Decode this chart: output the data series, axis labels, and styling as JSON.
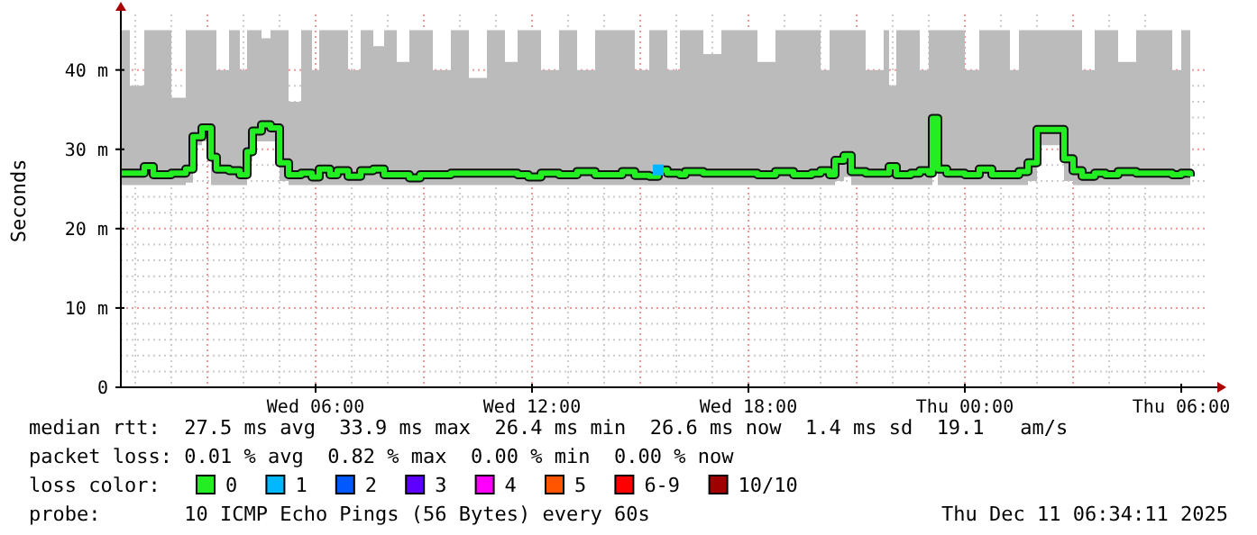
{
  "chart_data": {
    "type": "step",
    "ylabel": "Seconds",
    "legend_title": "loss color:",
    "legend": "bottom",
    "grid": true,
    "line_style": "solid",
    "xlim": [
      "2025-12-10T00:36",
      "2025-12-11T06:42"
    ],
    "xticks": [
      {
        "value": "2025-12-10T06:00",
        "label": "Wed 06:00"
      },
      {
        "value": "2025-12-10T12:00",
        "label": "Wed 12:00"
      },
      {
        "value": "2025-12-10T18:00",
        "label": "Wed 18:00"
      },
      {
        "value": "2025-12-11T00:00",
        "label": "Thu 00:00"
      },
      {
        "value": "2025-12-11T06:00",
        "label": "Thu 06:00"
      }
    ],
    "ylim": [
      0,
      47
    ],
    "yticks": [
      0,
      {
        "value": 10,
        "label": "10 m"
      },
      {
        "value": 20,
        "label": "20 m"
      },
      {
        "value": 30,
        "label": "30 m"
      },
      {
        "value": 40,
        "label": "40 m"
      }
    ],
    "x": [
      "2025-12-10T00:36",
      "2025-12-10T00:51",
      "2025-12-10T01:15",
      "2025-12-10T01:30",
      "2025-12-10T02:00",
      "2025-12-10T02:24",
      "2025-12-10T02:36",
      "2025-12-10T02:51",
      "2025-12-10T03:06",
      "2025-12-10T03:15",
      "2025-12-10T03:36",
      "2025-12-10T03:54",
      "2025-12-10T04:06",
      "2025-12-10T04:15",
      "2025-12-10T04:30",
      "2025-12-10T04:45",
      "2025-12-10T05:00",
      "2025-12-10T05:15",
      "2025-12-10T05:36",
      "2025-12-10T05:54",
      "2025-12-10T06:06",
      "2025-12-10T06:24",
      "2025-12-10T06:36",
      "2025-12-10T06:54",
      "2025-12-10T07:15",
      "2025-12-10T07:36",
      "2025-12-10T07:54",
      "2025-12-10T08:15",
      "2025-12-10T08:36",
      "2025-12-10T08:54",
      "2025-12-10T09:15",
      "2025-12-10T09:45",
      "2025-12-10T10:15",
      "2025-12-10T10:45",
      "2025-12-10T11:15",
      "2025-12-10T11:36",
      "2025-12-10T11:54",
      "2025-12-10T12:15",
      "2025-12-10T12:45",
      "2025-12-10T13:15",
      "2025-12-10T13:45",
      "2025-12-10T14:15",
      "2025-12-10T14:30",
      "2025-12-10T14:51",
      "2025-12-10T15:15",
      "2025-12-10T15:30",
      "2025-12-10T15:45",
      "2025-12-10T16:06",
      "2025-12-10T16:15",
      "2025-12-10T16:45",
      "2025-12-10T17:15",
      "2025-12-10T17:45",
      "2025-12-10T18:15",
      "2025-12-10T18:45",
      "2025-12-10T19:15",
      "2025-12-10T19:45",
      "2025-12-10T20:00",
      "2025-12-10T20:15",
      "2025-12-10T20:24",
      "2025-12-10T20:39",
      "2025-12-10T20:51",
      "2025-12-10T21:15",
      "2025-12-10T21:45",
      "2025-12-10T21:54",
      "2025-12-10T22:06",
      "2025-12-10T22:30",
      "2025-12-10T22:45",
      "2025-12-10T23:00",
      "2025-12-10T23:06",
      "2025-12-10T23:15",
      "2025-12-10T23:30",
      "2025-12-11T00:00",
      "2025-12-11T00:24",
      "2025-12-11T00:45",
      "2025-12-11T01:15",
      "2025-12-11T01:30",
      "2025-12-11T01:45",
      "2025-12-11T02:00",
      "2025-12-11T02:30",
      "2025-12-11T02:45",
      "2025-12-11T03:00",
      "2025-12-11T03:15",
      "2025-12-11T03:36",
      "2025-12-11T03:54",
      "2025-12-11T04:15",
      "2025-12-11T04:45",
      "2025-12-11T05:15",
      "2025-12-11T05:45",
      "2025-12-11T06:00",
      "2025-12-11T06:15"
    ],
    "series": [
      {
        "name": "0",
        "color": "#22ee22",
        "values": [
          27.0,
          27.0,
          27.8,
          26.8,
          27.0,
          27.5,
          31.6,
          32.7,
          29.0,
          27.5,
          27.3,
          26.8,
          29.7,
          32.3,
          33.1,
          32.7,
          28.3,
          26.8,
          27.0,
          26.5,
          27.5,
          26.8,
          27.3,
          26.6,
          27.3,
          27.5,
          26.8,
          26.8,
          26.4,
          26.8,
          26.8,
          27.0,
          27.0,
          27.0,
          27.0,
          26.8,
          26.5,
          27.0,
          26.8,
          27.2,
          26.8,
          26.8,
          27.2,
          26.7,
          26.6,
          27.4,
          27.0,
          26.8,
          27.2,
          27.0,
          27.0,
          27.0,
          26.8,
          27.2,
          26.8,
          27.0,
          27.3,
          26.8,
          28.6,
          29.2,
          27.2,
          27.0,
          27.0,
          27.8,
          26.8,
          27.0,
          27.3,
          27.0,
          33.9,
          27.5,
          27.0,
          26.8,
          27.5,
          26.8,
          26.8,
          27.2,
          28.3,
          32.5,
          32.5,
          28.8,
          27.3,
          26.6,
          27.0,
          26.8,
          27.2,
          27.0,
          27.0,
          26.8,
          27.0,
          26.6
        ],
        "lower": [
          25.5,
          25.5,
          25.5,
          25.5,
          25.5,
          25.8,
          30.5,
          31,
          25.5,
          25.5,
          25.5,
          25.5,
          28.5,
          31,
          31,
          31,
          26,
          25.5,
          25.5,
          25.5,
          25.5,
          25.5,
          25.5,
          25.5,
          25.5,
          25.5,
          25.5,
          25.5,
          25.5,
          25.5,
          25.5,
          25.5,
          25.5,
          25.5,
          25.5,
          25.5,
          25.5,
          25.5,
          25.5,
          25.5,
          25.5,
          25.5,
          25.5,
          25.5,
          25.5,
          25.5,
          25.5,
          25.5,
          25.5,
          25.5,
          25.5,
          25.5,
          25.5,
          25.5,
          25.5,
          25.5,
          25.5,
          25.5,
          26,
          26.5,
          25.5,
          25.5,
          25.5,
          25.5,
          25.5,
          25.5,
          25.5,
          25.5,
          31,
          25.5,
          25.5,
          25.5,
          25.5,
          25.5,
          25.5,
          25.5,
          26,
          30.5,
          30.5,
          26,
          25.5,
          25.5,
          25.5,
          25.5,
          25.5,
          25.5,
          25.5,
          25.5,
          25.5,
          25.5
        ],
        "upper": [
          45,
          38,
          45,
          45,
          36.5,
          45,
          45,
          45,
          45,
          40,
          45,
          40,
          45,
          45,
          44,
          45,
          45,
          36,
          45,
          40,
          45,
          45,
          45,
          40,
          45,
          43,
          45,
          41,
          45,
          45,
          40,
          45,
          39,
          45,
          41,
          45,
          45,
          40,
          45,
          40,
          45,
          45,
          45,
          40,
          45,
          45,
          40,
          45,
          45,
          42,
          45,
          45,
          41,
          45,
          45,
          45,
          40,
          45,
          45,
          45,
          45,
          40,
          45,
          38,
          45,
          45,
          40,
          45,
          45,
          45,
          45,
          40,
          45,
          45,
          40,
          45,
          45,
          45,
          45,
          45,
          45,
          40,
          45,
          45,
          41,
          45,
          45,
          40,
          45,
          45
        ]
      },
      {
        "name": "1",
        "color": "#00b8ff",
        "type": "scatter",
        "marker": "square",
        "x": [
          "2025-12-10T15:30"
        ],
        "values": [
          27.4
        ]
      },
      {
        "name": "2",
        "color": "#0059ff",
        "type": "scatter",
        "marker": "square",
        "values": [
          null,
          null,
          null,
          null,
          null,
          null,
          null,
          null,
          null,
          null,
          null,
          null,
          null,
          null,
          null,
          null,
          null,
          null,
          null,
          null,
          null,
          null,
          null,
          null,
          null,
          null,
          null,
          null,
          null,
          null,
          null,
          null,
          null,
          null,
          null,
          null,
          null,
          null,
          null,
          null,
          null,
          null,
          null,
          null,
          null,
          null,
          null,
          null,
          null,
          null,
          null,
          null,
          null,
          null,
          null,
          null,
          null,
          null,
          null,
          null,
          null,
          null,
          null,
          null,
          null,
          null,
          null,
          null,
          null,
          null,
          null,
          null,
          null,
          null,
          null,
          null,
          null,
          null,
          null,
          null,
          null,
          null,
          null,
          null,
          null,
          null,
          null,
          null,
          null,
          null
        ]
      },
      {
        "name": "3",
        "color": "#5e00ff",
        "type": "scatter",
        "marker": "square",
        "values": [
          null,
          null,
          null,
          null,
          null,
          null,
          null,
          null,
          null,
          null,
          null,
          null,
          null,
          null,
          null,
          null,
          null,
          null,
          null,
          null,
          null,
          null,
          null,
          null,
          null,
          null,
          null,
          null,
          null,
          null,
          null,
          null,
          null,
          null,
          null,
          null,
          null,
          null,
          null,
          null,
          null,
          null,
          null,
          null,
          null,
          null,
          null,
          null,
          null,
          null,
          null,
          null,
          null,
          null,
          null,
          null,
          null,
          null,
          null,
          null,
          null,
          null,
          null,
          null,
          null,
          null,
          null,
          null,
          null,
          null,
          null,
          null,
          null,
          null,
          null,
          null,
          null,
          null,
          null,
          null,
          null,
          null,
          null,
          null,
          null,
          null,
          null,
          null,
          null,
          null
        ]
      },
      {
        "name": "4",
        "color": "#ff00ff",
        "type": "scatter",
        "marker": "square",
        "values": [
          null,
          null,
          null,
          null,
          null,
          null,
          null,
          null,
          null,
          null,
          null,
          null,
          null,
          null,
          null,
          null,
          null,
          null,
          null,
          null,
          null,
          null,
          null,
          null,
          null,
          null,
          null,
          null,
          null,
          null,
          null,
          null,
          null,
          null,
          null,
          null,
          null,
          null,
          null,
          null,
          null,
          null,
          null,
          null,
          null,
          null,
          null,
          null,
          null,
          null,
          null,
          null,
          null,
          null,
          null,
          null,
          null,
          null,
          null,
          null,
          null,
          null,
          null,
          null,
          null,
          null,
          null,
          null,
          null,
          null,
          null,
          null,
          null,
          null,
          null,
          null,
          null,
          null,
          null,
          null,
          null,
          null,
          null,
          null,
          null,
          null,
          null,
          null,
          null,
          null
        ]
      },
      {
        "name": "5",
        "color": "#ff5500",
        "type": "scatter",
        "marker": "square",
        "values": [
          null,
          null,
          null,
          null,
          null,
          null,
          null,
          null,
          null,
          null,
          null,
          null,
          null,
          null,
          null,
          null,
          null,
          null,
          null,
          null,
          null,
          null,
          null,
          null,
          null,
          null,
          null,
          null,
          null,
          null,
          null,
          null,
          null,
          null,
          null,
          null,
          null,
          null,
          null,
          null,
          null,
          null,
          null,
          null,
          null,
          null,
          null,
          null,
          null,
          null,
          null,
          null,
          null,
          null,
          null,
          null,
          null,
          null,
          null,
          null,
          null,
          null,
          null,
          null,
          null,
          null,
          null,
          null,
          null,
          null,
          null,
          null,
          null,
          null,
          null,
          null,
          null,
          null,
          null,
          null,
          null,
          null,
          null,
          null,
          null,
          null,
          null,
          null,
          null,
          null
        ]
      },
      {
        "name": "6-9",
        "color": "#ff0000",
        "type": "scatter",
        "marker": "square",
        "values": [
          null,
          null,
          null,
          null,
          null,
          null,
          null,
          null,
          null,
          null,
          null,
          null,
          null,
          null,
          null,
          null,
          null,
          null,
          null,
          null,
          null,
          null,
          null,
          null,
          null,
          null,
          null,
          null,
          null,
          null,
          null,
          null,
          null,
          null,
          null,
          null,
          null,
          null,
          null,
          null,
          null,
          null,
          null,
          null,
          null,
          null,
          null,
          null,
          null,
          null,
          null,
          null,
          null,
          null,
          null,
          null,
          null,
          null,
          null,
          null,
          null,
          null,
          null,
          null,
          null,
          null,
          null,
          null,
          null,
          null,
          null,
          null,
          null,
          null,
          null,
          null,
          null,
          null,
          null,
          null,
          null,
          null,
          null,
          null,
          null,
          null,
          null,
          null,
          null,
          null
        ]
      },
      {
        "name": "10/10",
        "color": "#a00000",
        "type": "scatter",
        "marker": "square",
        "values": [
          null,
          null,
          null,
          null,
          null,
          null,
          null,
          null,
          null,
          null,
          null,
          null,
          null,
          null,
          null,
          null,
          null,
          null,
          null,
          null,
          null,
          null,
          null,
          null,
          null,
          null,
          null,
          null,
          null,
          null,
          null,
          null,
          null,
          null,
          null,
          null,
          null,
          null,
          null,
          null,
          null,
          null,
          null,
          null,
          null,
          null,
          null,
          null,
          null,
          null,
          null,
          null,
          null,
          null,
          null,
          null,
          null,
          null,
          null,
          null,
          null,
          null,
          null,
          null,
          null,
          null,
          null,
          null,
          null,
          null,
          null,
          null,
          null,
          null,
          null,
          null,
          null,
          null,
          null,
          null,
          null,
          null,
          null,
          null,
          null,
          null,
          null,
          null,
          null,
          null
        ]
      }
    ],
    "annotations": [
      "median rtt:  27.5 ms avg  33.9 ms max  26.4 ms min  26.6 ms now  1.4 ms sd  19.1   am/s",
      "packet loss: 0.01 % avg  0.82 % max  0.00 % min  0.00 % now",
      "probe:       10 ICMP Echo Pings (56 Bytes) every 60s",
      "Thu Dec 11 06:34:11 2025"
    ]
  }
}
